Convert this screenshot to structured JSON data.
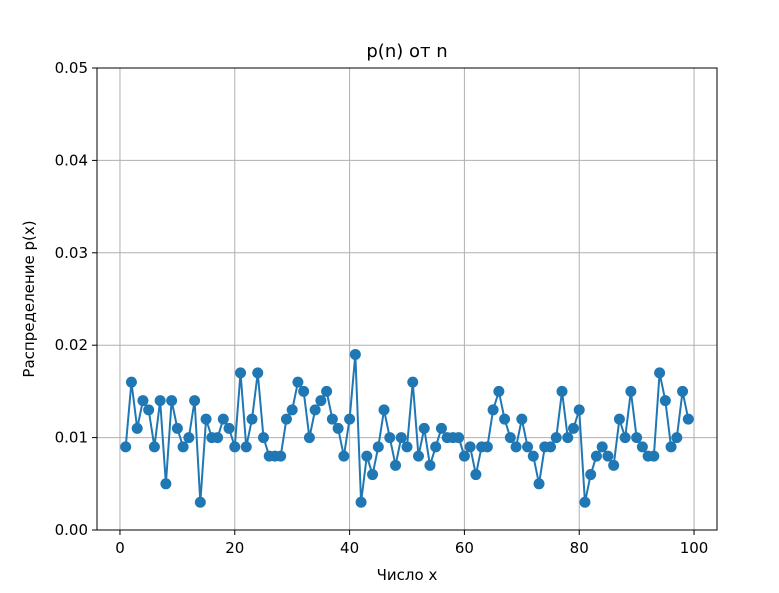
{
  "chart_data": {
    "type": "line",
    "title": "p(n) от n",
    "xlabel": "Число x",
    "ylabel": "Распределение p(x)",
    "xlim": [
      -4,
      104
    ],
    "ylim": [
      0,
      0.05
    ],
    "xticks": [
      0,
      20,
      40,
      60,
      80,
      100
    ],
    "xtick_labels": [
      "0",
      "20",
      "40",
      "60",
      "80",
      "100"
    ],
    "yticks": [
      0,
      0.01,
      0.02,
      0.03,
      0.04,
      0.05
    ],
    "ytick_labels": [
      "0.00",
      "0.01",
      "0.02",
      "0.03",
      "0.04",
      "0.05"
    ],
    "grid": true,
    "legend": false,
    "series": [
      {
        "color": "#1f77b4",
        "marker": "circle",
        "x": [
          1,
          2,
          3,
          4,
          5,
          6,
          7,
          8,
          9,
          10,
          11,
          12,
          13,
          14,
          15,
          16,
          17,
          18,
          19,
          20,
          21,
          22,
          23,
          24,
          25,
          26,
          27,
          28,
          29,
          30,
          31,
          32,
          33,
          34,
          35,
          36,
          37,
          38,
          39,
          40,
          41,
          42,
          43,
          44,
          45,
          46,
          47,
          48,
          49,
          50,
          51,
          52,
          53,
          54,
          55,
          56,
          57,
          58,
          59,
          60,
          61,
          62,
          63,
          64,
          65,
          66,
          67,
          68,
          69,
          70,
          71,
          72,
          73,
          74,
          75,
          76,
          77,
          78,
          79,
          80,
          81,
          82,
          83,
          84,
          85,
          86,
          87,
          88,
          89,
          90,
          91,
          92,
          93,
          94,
          95,
          96,
          97,
          98,
          99
        ],
        "y": [
          0.009,
          0.016,
          0.011,
          0.014,
          0.013,
          0.009,
          0.014,
          0.005,
          0.014,
          0.011,
          0.009,
          0.01,
          0.014,
          0.003,
          0.012,
          0.01,
          0.01,
          0.012,
          0.011,
          0.009,
          0.017,
          0.009,
          0.012,
          0.017,
          0.01,
          0.008,
          0.008,
          0.008,
          0.012,
          0.013,
          0.016,
          0.015,
          0.01,
          0.013,
          0.014,
          0.015,
          0.012,
          0.011,
          0.008,
          0.012,
          0.019,
          0.003,
          0.008,
          0.006,
          0.009,
          0.013,
          0.01,
          0.007,
          0.01,
          0.009,
          0.016,
          0.008,
          0.011,
          0.007,
          0.009,
          0.011,
          0.01,
          0.01,
          0.01,
          0.008,
          0.009,
          0.006,
          0.009,
          0.009,
          0.013,
          0.015,
          0.012,
          0.01,
          0.009,
          0.012,
          0.009,
          0.008,
          0.005,
          0.009,
          0.009,
          0.01,
          0.015,
          0.01,
          0.011,
          0.013,
          0.003,
          0.006,
          0.008,
          0.009,
          0.008,
          0.007,
          0.012,
          0.01,
          0.015,
          0.01,
          0.009,
          0.008,
          0.008,
          0.017,
          0.014,
          0.009,
          0.01,
          0.015,
          0.012
        ]
      }
    ]
  }
}
